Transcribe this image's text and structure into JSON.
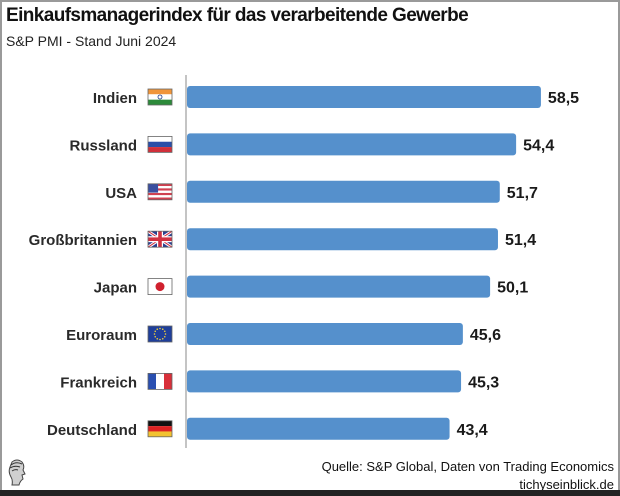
{
  "header": {
    "title": "Einkaufsmanagerindex für das verarbeitende Gewerbe",
    "subtitle": "S&P PMI - Stand Juni 2024"
  },
  "footer": {
    "source": "Quelle: S&P Global, Daten von Trading Economics",
    "site": "tichyseinblick.de",
    "logo_icon": "greek-head-logo-icon"
  },
  "colors": {
    "bar": "#5590cc",
    "axis": "#888888",
    "text": "#222222"
  },
  "chart_data": {
    "type": "bar",
    "orientation": "horizontal",
    "title": "Einkaufsmanagerindex für das verarbeitende Gewerbe",
    "subtitle": "S&P PMI - Stand Juni 2024",
    "xlabel": "",
    "ylabel": "",
    "xlim": [
      0,
      60
    ],
    "grid": false,
    "legend": "none",
    "categories": [
      "Indien",
      "Russland",
      "USA",
      "Großbritannien",
      "Japan",
      "Euroraum",
      "Frankreich",
      "Deutschland"
    ],
    "flags": [
      "india-flag-icon",
      "russia-flag-icon",
      "usa-flag-icon",
      "uk-flag-icon",
      "japan-flag-icon",
      "eu-flag-icon",
      "france-flag-icon",
      "germany-flag-icon"
    ],
    "values": [
      58.5,
      54.4,
      51.7,
      51.4,
      50.1,
      45.6,
      45.3,
      43.4
    ],
    "value_labels": [
      "58,5",
      "54,4",
      "51,7",
      "51,4",
      "50,1",
      "45,6",
      "45,3",
      "43,4"
    ]
  }
}
